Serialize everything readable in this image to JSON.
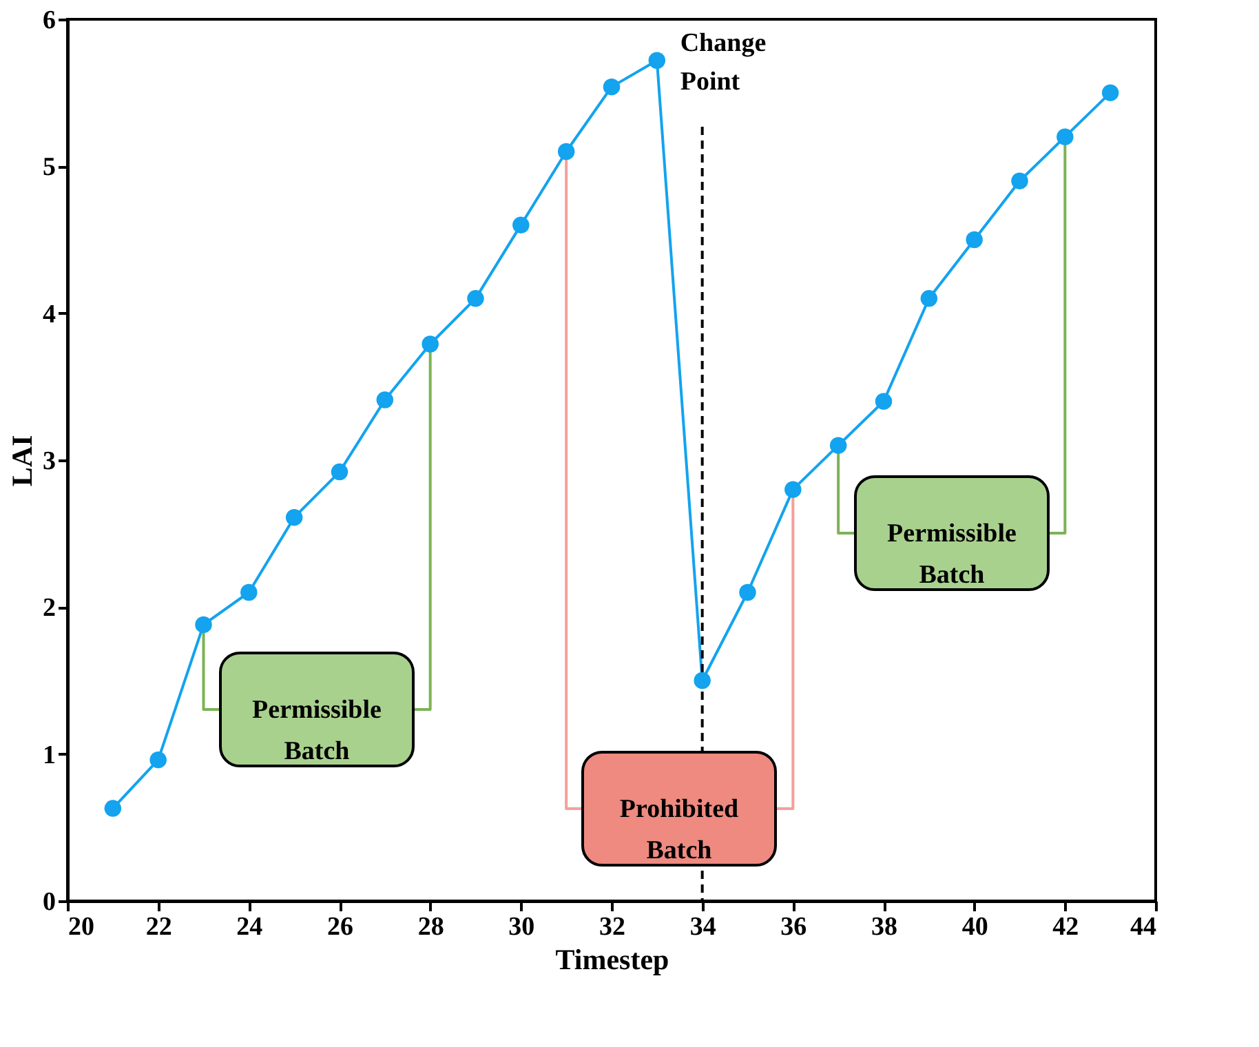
{
  "chart_data": {
    "type": "line",
    "xlabel": "Timestep",
    "ylabel": "LAI",
    "x": [
      21,
      22,
      23,
      24,
      25,
      26,
      27,
      28,
      29,
      30,
      31,
      32,
      33,
      34,
      35,
      36,
      37,
      38,
      39,
      40,
      41,
      42,
      43
    ],
    "series": [
      {
        "color": "#13a3ef",
        "values": [
          0.63,
          0.96,
          1.88,
          2.1,
          2.61,
          2.92,
          3.41,
          3.79,
          4.1,
          4.6,
          5.1,
          5.54,
          5.72,
          1.5,
          2.1,
          2.8,
          3.1,
          3.4,
          4.1,
          4.5,
          4.9,
          5.2,
          5.5
        ]
      }
    ],
    "xlim": [
      20,
      44
    ],
    "ylim": [
      0,
      6
    ],
    "xticks": [
      20,
      22,
      24,
      26,
      28,
      30,
      32,
      34,
      36,
      38,
      40,
      42,
      44
    ],
    "yticks": [
      0,
      1,
      2,
      3,
      4,
      5,
      6
    ],
    "marker": "circle",
    "line_style": "solid",
    "grid": false,
    "ref_lines": [
      {
        "axis": "x",
        "value": 34,
        "label": "Change Point",
        "color": "#000000",
        "line_style": "dashed"
      }
    ],
    "annotations": [
      "Permissible Batch",
      "Prohibited Batch",
      "Permissible Batch"
    ]
  }
}
